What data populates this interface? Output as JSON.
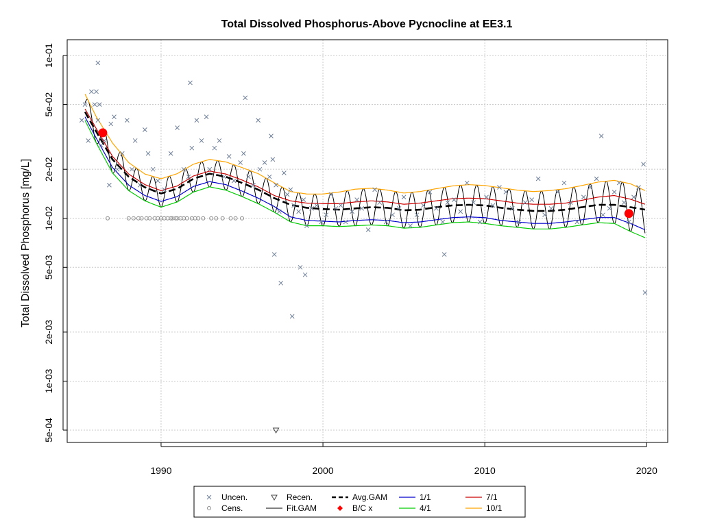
{
  "chart_data": {
    "type": "line",
    "title": "Total Dissolved Phosphorus-Above Pycnocline at EE3.1",
    "xlabel": "",
    "ylabel": "Total Dissolved Phosphorus [mg/L]",
    "ylog": true,
    "xlim": [
      1984.2,
      2021.3
    ],
    "ylim": [
      0.00042,
      0.125
    ],
    "x_ticks": [
      1990,
      2000,
      2010,
      2020
    ],
    "x_tick_labels": [
      "1990",
      "2000",
      "2010",
      "2020"
    ],
    "y_ticks": [
      0.1,
      0.05,
      0.02,
      0.01,
      0.005,
      0.002,
      0.001,
      0.0005
    ],
    "y_tick_labels": [
      "1e-01",
      "5e-02",
      "2e-02",
      "1e-02",
      "5e-03",
      "2e-03",
      "1e-03",
      "5e-04"
    ],
    "grid": true,
    "colors": {
      "uncensored": "#6e7f98",
      "censored": "#8c8c8c",
      "recensored": "#444444",
      "fit_gam": "#000000",
      "avg_gam": "#000000",
      "bc": "#ff0000",
      "jan": "#0000cc",
      "apr": "#00cc00",
      "jul": "#cc0000",
      "oct": "#ffa500",
      "grid": "#c8c8c8"
    },
    "legend": {
      "placement": "bottom-center",
      "items": [
        {
          "label": "Uncen.",
          "symbol": "x"
        },
        {
          "label": "Cens.",
          "symbol": "circle"
        },
        {
          "label": "Recen.",
          "symbol": "triangle-down"
        },
        {
          "label": "Fit.GAM",
          "symbol": "line"
        },
        {
          "label": "Avg.GAM",
          "symbol": "dashed-line"
        },
        {
          "label": "B/C x",
          "symbol": "diamond"
        },
        {
          "label": "1/1",
          "symbol": "line-blue"
        },
        {
          "label": "4/1",
          "symbol": "line-green"
        },
        {
          "label": "7/1",
          "symbol": "line-red"
        },
        {
          "label": "10/1",
          "symbol": "line-orange"
        }
      ]
    },
    "series": [
      {
        "name": "Avg.GAM",
        "x": [
          1985.3,
          1986,
          1987,
          1988,
          1989,
          1990,
          1991,
          1992,
          1993,
          1994,
          1995,
          1996,
          1997,
          1998,
          1999,
          2000,
          2001,
          2002,
          2003,
          2004,
          2005,
          2006,
          2007,
          2008,
          2009,
          2010,
          2011,
          2012,
          2013,
          2014,
          2015,
          2016,
          2017,
          2018,
          2019,
          2019.9
        ],
        "y": [
          0.045,
          0.034,
          0.023,
          0.018,
          0.0155,
          0.0142,
          0.0152,
          0.0175,
          0.0188,
          0.018,
          0.0165,
          0.015,
          0.0133,
          0.0121,
          0.0116,
          0.0114,
          0.0113,
          0.0115,
          0.0117,
          0.0116,
          0.0112,
          0.0113,
          0.0117,
          0.012,
          0.0121,
          0.012,
          0.0116,
          0.0113,
          0.0111,
          0.0111,
          0.0113,
          0.0117,
          0.0121,
          0.0121,
          0.0117,
          0.0113
        ]
      },
      {
        "name": "1/1",
        "x": [
          1985.3,
          1986,
          1987,
          1988,
          1989,
          1990,
          1991,
          1992,
          1993,
          1994,
          1995,
          1996,
          1997,
          1998,
          1999,
          2000,
          2001,
          2002,
          2003,
          2004,
          2005,
          2006,
          2007,
          2008,
          2009,
          2010,
          2011,
          2012,
          2013,
          2014,
          2015,
          2016,
          2017,
          2018,
          2019,
          2019.9
        ],
        "y": [
          0.042,
          0.031,
          0.0205,
          0.016,
          0.0138,
          0.0127,
          0.0136,
          0.0157,
          0.0168,
          0.0161,
          0.0147,
          0.0133,
          0.0118,
          0.0102,
          0.0097,
          0.0096,
          0.0095,
          0.0097,
          0.0098,
          0.0097,
          0.0094,
          0.0095,
          0.0098,
          0.0101,
          0.0102,
          0.0101,
          0.0097,
          0.0095,
          0.0093,
          0.0093,
          0.0095,
          0.0098,
          0.0101,
          0.0101,
          0.0093,
          0.0085
        ]
      },
      {
        "name": "4/1",
        "x": [
          1985.3,
          1986,
          1987,
          1988,
          1989,
          1990,
          1991,
          1992,
          1993,
          1994,
          1995,
          1996,
          1997,
          1998,
          1999,
          2000,
          2001,
          2002,
          2003,
          2004,
          2005,
          2006,
          2007,
          2008,
          2009,
          2010,
          2011,
          2012,
          2013,
          2014,
          2015,
          2016,
          2017,
          2018,
          2019,
          2019.9
        ],
        "y": [
          0.04,
          0.029,
          0.019,
          0.0148,
          0.0128,
          0.0117,
          0.0126,
          0.0145,
          0.0156,
          0.0149,
          0.0136,
          0.0123,
          0.0109,
          0.0095,
          0.009,
          0.009,
          0.0089,
          0.009,
          0.0091,
          0.009,
          0.0087,
          0.0088,
          0.0091,
          0.0094,
          0.0095,
          0.0093,
          0.009,
          0.0088,
          0.0086,
          0.0086,
          0.0088,
          0.0091,
          0.0094,
          0.0093,
          0.0083,
          0.0076
        ]
      },
      {
        "name": "7/1",
        "x": [
          1985.3,
          1986,
          1987,
          1988,
          1989,
          1990,
          1991,
          1992,
          1993,
          1994,
          1995,
          1996,
          1997,
          1998,
          1999,
          2000,
          2001,
          2002,
          2003,
          2004,
          2005,
          2006,
          2007,
          2008,
          2009,
          2010,
          2011,
          2012,
          2013,
          2014,
          2015,
          2016,
          2017,
          2018,
          2019,
          2019.9
        ],
        "y": [
          0.047,
          0.0355,
          0.024,
          0.0187,
          0.0161,
          0.0148,
          0.0158,
          0.0182,
          0.0195,
          0.0187,
          0.0172,
          0.0156,
          0.0138,
          0.0128,
          0.0124,
          0.0123,
          0.0123,
          0.0126,
          0.0128,
          0.0126,
          0.0122,
          0.0124,
          0.0128,
          0.0132,
          0.0133,
          0.0132,
          0.0128,
          0.0124,
          0.0122,
          0.0122,
          0.0124,
          0.0129,
          0.0135,
          0.0138,
          0.0131,
          0.0122
        ]
      },
      {
        "name": "10/1",
        "x": [
          1985.3,
          1986,
          1987,
          1988,
          1989,
          1990,
          1991,
          1992,
          1993,
          1994,
          1995,
          1996,
          1997,
          1998,
          1999,
          2000,
          2001,
          2002,
          2003,
          2004,
          2005,
          2006,
          2007,
          2008,
          2009,
          2010,
          2011,
          2012,
          2013,
          2014,
          2015,
          2016,
          2017,
          2018,
          2019,
          2019.9
        ],
        "y": [
          0.058,
          0.042,
          0.029,
          0.022,
          0.0187,
          0.0175,
          0.0188,
          0.0215,
          0.023,
          0.0222,
          0.0205,
          0.0188,
          0.0165,
          0.0146,
          0.0141,
          0.0141,
          0.0145,
          0.0151,
          0.0153,
          0.0149,
          0.0143,
          0.0146,
          0.0152,
          0.0158,
          0.0161,
          0.0159,
          0.0154,
          0.0149,
          0.0146,
          0.0148,
          0.0152,
          0.0159,
          0.0167,
          0.0171,
          0.0163,
          0.0148
        ]
      },
      {
        "name": "B/C x",
        "x": [
          1986.4,
          2018.9
        ],
        "y": [
          0.0335,
          0.0107
        ]
      },
      {
        "name": "Uncen.",
        "x": [
          1985.1,
          1985.3,
          1985.5,
          1985.7,
          1985.9,
          1986.0,
          1986.1,
          1986.2,
          1986.3,
          1986.5,
          1986.8,
          1986.9,
          1987.1,
          1987.3,
          1987.6,
          1987.9,
          1988.2,
          1988.4,
          1988.7,
          1989.0,
          1989.2,
          1989.5,
          1989.8,
          1990.2,
          1990.6,
          1991.0,
          1991.4,
          1991.7,
          1991.9,
          1992.2,
          1992.5,
          1992.8,
          1993.0,
          1993.3,
          1993.6,
          1993.9,
          1994.2,
          1994.5,
          1994.9,
          1995.1,
          1995.4,
          1995.7,
          1996.1,
          1996.4,
          1996.7,
          1996.9,
          1997.1,
          1997.3,
          1997.6,
          1997.8,
          1998.0,
          1998.2,
          1998.5,
          1998.8,
          1999.0,
          1999.3,
          1999.6,
          1999.9,
          2000.2,
          2000.5,
          2000.8,
          2001.1,
          2001.4,
          2001.8,
          2002.1,
          2002.4,
          2002.8,
          2003.2,
          2003.5,
          2003.9,
          2004.3,
          2004.7,
          2005.0,
          2005.4,
          2005.8,
          2006.2,
          2006.6,
          2007.0,
          2007.4,
          2007.7,
          2008.1,
          2008.5,
          2008.9,
          2009.3,
          2009.7,
          2010.1,
          2010.5,
          2010.9,
          2011.3,
          2011.7,
          2012.1,
          2012.5,
          2012.9,
          2013.3,
          2013.7,
          2014.1,
          2014.5,
          2014.9,
          2015.3,
          2015.7,
          2016.1,
          2016.5,
          2016.9,
          2017.3,
          2017.7,
          2018.0,
          2018.3,
          2018.6,
          2018.9,
          2019.2,
          2019.5,
          2019.8,
          1986.1,
          1991.8,
          1995.2,
          1996.0,
          1996.8,
          1997.0,
          1997.4,
          1998.1,
          1998.6,
          1998.9,
          2007.5,
          2017.2,
          2019.9
        ],
        "y": [
          0.04,
          0.05,
          0.03,
          0.06,
          0.05,
          0.06,
          0.04,
          0.05,
          0.028,
          0.03,
          0.016,
          0.038,
          0.042,
          0.02,
          0.025,
          0.04,
          0.02,
          0.03,
          0.016,
          0.035,
          0.025,
          0.02,
          0.017,
          0.015,
          0.025,
          0.036,
          0.02,
          0.018,
          0.027,
          0.04,
          0.03,
          0.042,
          0.02,
          0.027,
          0.03,
          0.018,
          0.024,
          0.017,
          0.022,
          0.025,
          0.018,
          0.016,
          0.02,
          0.022,
          0.018,
          0.023,
          0.016,
          0.011,
          0.019,
          0.014,
          0.015,
          0.012,
          0.011,
          0.013,
          0.009,
          0.0115,
          0.012,
          0.0095,
          0.0105,
          0.014,
          0.0115,
          0.012,
          0.0095,
          0.011,
          0.013,
          0.0115,
          0.0085,
          0.015,
          0.0125,
          0.0095,
          0.0105,
          0.0115,
          0.0135,
          0.009,
          0.0105,
          0.012,
          0.0145,
          0.0115,
          0.0095,
          0.0125,
          0.013,
          0.011,
          0.0165,
          0.0125,
          0.0095,
          0.0135,
          0.012,
          0.0155,
          0.0145,
          0.0115,
          0.0095,
          0.0125,
          0.013,
          0.0175,
          0.0105,
          0.0115,
          0.0145,
          0.0165,
          0.0125,
          0.0095,
          0.0135,
          0.0155,
          0.0175,
          0.0105,
          0.0115,
          0.0145,
          0.0165,
          0.0125,
          0.0095,
          0.0135,
          0.0155,
          0.0215,
          0.09,
          0.068,
          0.055,
          0.04,
          0.032,
          0.006,
          0.004,
          0.0025,
          0.005,
          0.0045,
          0.006,
          0.032,
          0.0035
        ]
      },
      {
        "name": "Cens.",
        "x": [
          1986.7,
          1988.0,
          1988.3,
          1988.6,
          1988.8,
          1989.1,
          1989.3,
          1989.6,
          1989.8,
          1990.0,
          1990.2,
          1990.4,
          1990.6,
          1990.7,
          1990.9,
          1991.0,
          1991.2,
          1991.4,
          1991.6,
          1991.9,
          1992.1,
          1992.3,
          1992.6,
          1993.1,
          1993.4,
          1993.8,
          1994.3,
          1994.6,
          1995.0
        ],
        "y": [
          0.01,
          0.01,
          0.01,
          0.01,
          0.01,
          0.01,
          0.01,
          0.01,
          0.01,
          0.01,
          0.01,
          0.01,
          0.01,
          0.01,
          0.01,
          0.01,
          0.01,
          0.01,
          0.01,
          0.01,
          0.01,
          0.01,
          0.01,
          0.01,
          0.01,
          0.01,
          0.01,
          0.01,
          0.01
        ]
      },
      {
        "name": "Recen.",
        "x": [
          1997.1
        ],
        "y": [
          0.0005
        ]
      }
    ]
  }
}
